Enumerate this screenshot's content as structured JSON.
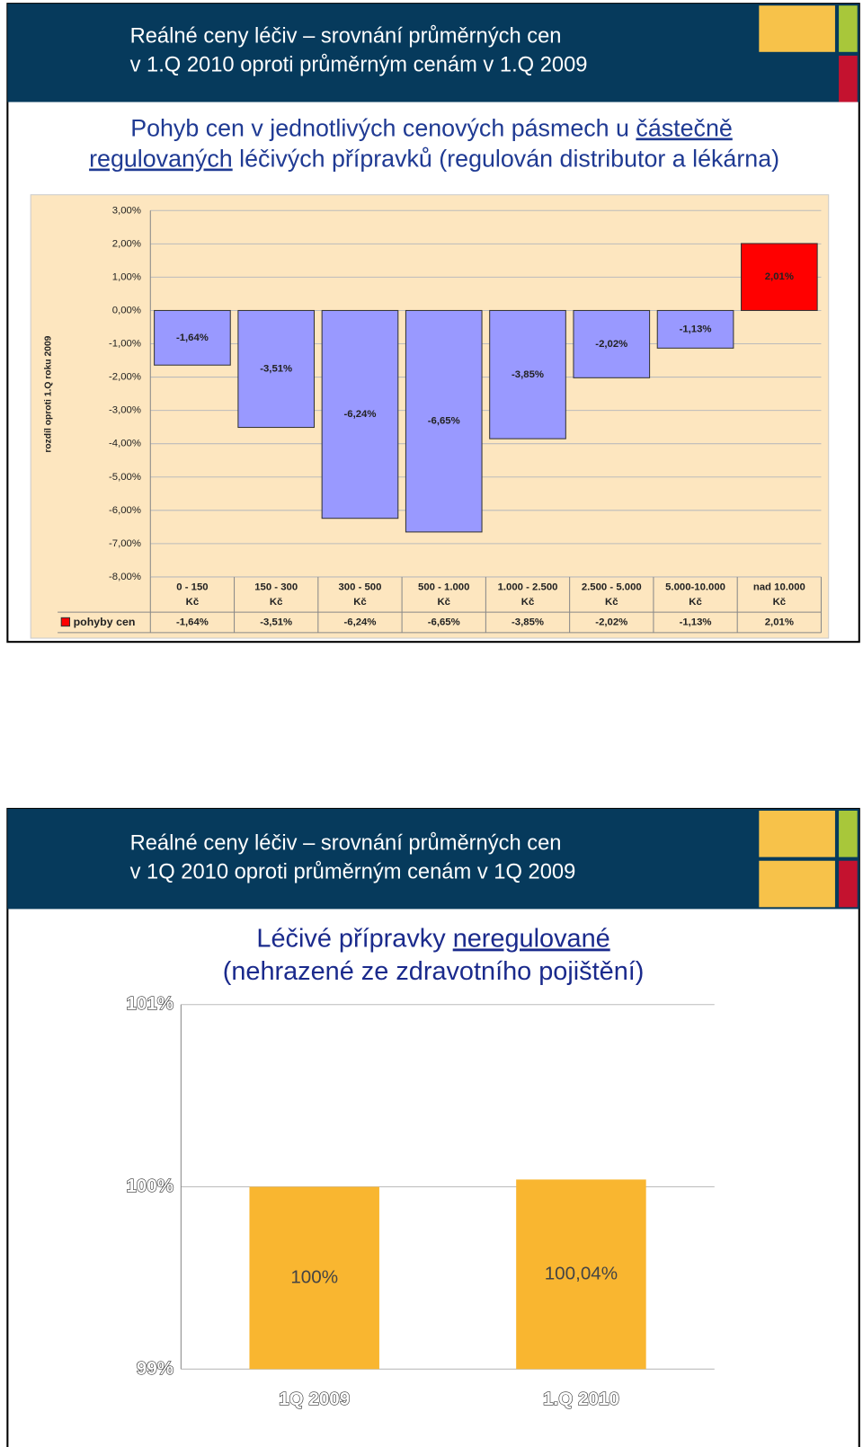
{
  "slides": [
    {
      "header": [
        "Reálné ceny léčiv – srovnání průměrných cen",
        "v 1.Q 2010 oproti průměrným cenám v 1.Q 2009"
      ],
      "title": [
        "Pohyb cen v jednotlivých cenových pásmech u ",
        "částečně",
        "regulovaných",
        " léčivých přípravků (regulován distributor a lékárna)"
      ]
    },
    {
      "header": [
        "Reálné ceny léčiv – srovnání průměrných cen",
        "v 1Q 2010 oproti průměrným cenám v 1Q 2009"
      ],
      "title": [
        "Léčivé přípravky ",
        "neregulované",
        "(nehrazené ze zdravotního pojištění)"
      ]
    }
  ],
  "chart_data": [
    {
      "type": "bar",
      "y_label": "rozdíl oproti 1.Q roku 2009",
      "categories": [
        [
          "0 - 150",
          "Kč"
        ],
        [
          "150 - 300",
          "Kč"
        ],
        [
          "300 - 500",
          "Kč"
        ],
        [
          "500 - 1.000",
          "Kč"
        ],
        [
          "1.000 - 2.500",
          "Kč"
        ],
        [
          "2.500 - 5.000",
          "Kč"
        ],
        [
          "5.000-10.000",
          "Kč"
        ],
        [
          "nad 10.000",
          "Kč"
        ]
      ],
      "series": [
        {
          "name": "pohyby cen",
          "color": "#ff0000",
          "colors": [
            "#9999ff",
            "#9999ff",
            "#9999ff",
            "#9999ff",
            "#9999ff",
            "#9999ff",
            "#9999ff",
            "#ff0000"
          ],
          "values": [
            -1.64,
            -3.51,
            -6.24,
            -6.65,
            -3.85,
            -2.02,
            -1.13,
            2.01
          ],
          "value_labels": [
            "-1,64%",
            "-3,51%",
            "-6,24%",
            "-6,65%",
            "-3,85%",
            "-2,02%",
            "-1,13%",
            "2,01%"
          ]
        }
      ],
      "ylim": [
        -8,
        3
      ],
      "yticks": [
        {
          "value": -8,
          "label": "-8,00%"
        },
        {
          "value": -7,
          "label": "-7,00%"
        },
        {
          "value": -6,
          "label": "-6,00%"
        },
        {
          "value": -5,
          "label": "-5,00%"
        },
        {
          "value": -4,
          "label": "-4,00%"
        },
        {
          "value": -3,
          "label": "-3,00%"
        },
        {
          "value": -2,
          "label": "-2,00%"
        },
        {
          "value": -1,
          "label": "-1,00%"
        },
        {
          "value": 0,
          "label": "0,00%"
        },
        {
          "value": 1,
          "label": "1,00%"
        },
        {
          "value": 2,
          "label": "2,00%"
        },
        {
          "value": 3,
          "label": "3,00%"
        }
      ],
      "grid": true
    },
    {
      "type": "bar",
      "categories": [
        "1Q 2009",
        "1.Q 2010"
      ],
      "values": [
        100,
        100.04
      ],
      "value_labels": [
        "100%",
        "100,04%"
      ],
      "color": "#f9b630",
      "ylim": [
        99,
        101
      ],
      "yticks": [
        {
          "value": 99,
          "label": "99%"
        },
        {
          "value": 100,
          "label": "100%"
        },
        {
          "value": 101,
          "label": "101%"
        }
      ],
      "grid": true
    }
  ]
}
